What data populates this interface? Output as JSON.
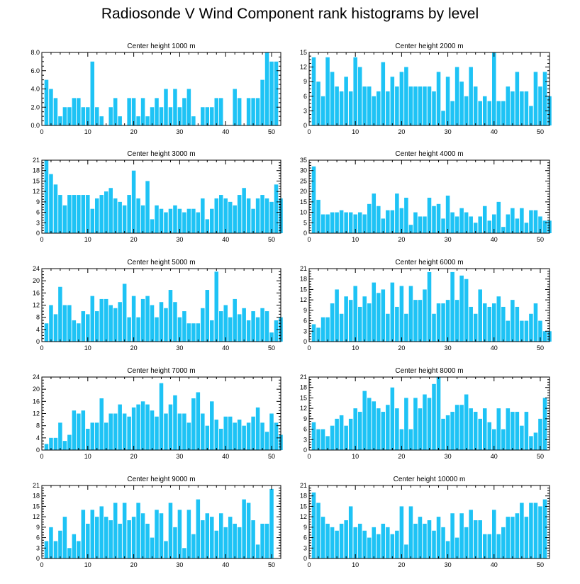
{
  "figure": {
    "title": "Radiosonde V Wind Component rank histograms by level",
    "bar_color": "#1EC3F5",
    "axis_color": "#000000"
  },
  "chart_data": [
    {
      "type": "bar",
      "title": "Center height 1000 m",
      "xlim": [
        0,
        52
      ],
      "ylim": [
        0,
        8
      ],
      "xticks": [
        0,
        10,
        20,
        30,
        40,
        50
      ],
      "yticks": [
        "0.0",
        "2.0",
        "4.0",
        "6.0",
        "8.0"
      ],
      "values": [
        5,
        4,
        3,
        1,
        2,
        2,
        3,
        3,
        2,
        2,
        7,
        2,
        1,
        0,
        2,
        3,
        1,
        0,
        3,
        3,
        1,
        3,
        1,
        2,
        3,
        2,
        4,
        2,
        4,
        2,
        3,
        4,
        1,
        0,
        2,
        2,
        2,
        3,
        3,
        0,
        0,
        4,
        3,
        0,
        3,
        3,
        3,
        5,
        8,
        7,
        7
      ]
    },
    {
      "type": "bar",
      "title": "Center height 2000 m",
      "xlim": [
        0,
        52
      ],
      "ylim": [
        0,
        15
      ],
      "xticks": [
        0,
        10,
        20,
        30,
        40,
        50
      ],
      "yticks": [
        "0",
        "3",
        "6",
        "9",
        "12",
        "15"
      ],
      "values": [
        14,
        9,
        6,
        14,
        11,
        8,
        7,
        10,
        7,
        14,
        12,
        8,
        8,
        6,
        7,
        13,
        7,
        10,
        8,
        11,
        12,
        8,
        8,
        8,
        8,
        8,
        7,
        11,
        3,
        10,
        5,
        12,
        9,
        6,
        12,
        8,
        5,
        6,
        5,
        15,
        5,
        5,
        8,
        7,
        11,
        7,
        7,
        4,
        11,
        8,
        11,
        6
      ]
    },
    {
      "type": "bar",
      "title": "Center height 3000 m",
      "xlim": [
        0,
        52
      ],
      "ylim": [
        0,
        21
      ],
      "xticks": [
        0,
        10,
        20,
        30,
        40,
        50
      ],
      "yticks": [
        "0",
        "3",
        "6",
        "9",
        "12",
        "15",
        "18",
        "21"
      ],
      "values": [
        21,
        17,
        14,
        11,
        8,
        11,
        11,
        11,
        11,
        11,
        7,
        10,
        11,
        12,
        13,
        10,
        9,
        8,
        11,
        18,
        10,
        8,
        15,
        4,
        8,
        7,
        6,
        7,
        8,
        7,
        6,
        7,
        7,
        6,
        10,
        4,
        7,
        10,
        11,
        10,
        9,
        8,
        11,
        13,
        10,
        7,
        10,
        11,
        10,
        9,
        14,
        10
      ]
    },
    {
      "type": "bar",
      "title": "Center height 4000 m",
      "xlim": [
        0,
        52
      ],
      "ylim": [
        0,
        35
      ],
      "xticks": [
        0,
        10,
        20,
        30,
        40,
        50
      ],
      "yticks": [
        "0",
        "5",
        "10",
        "15",
        "20",
        "25",
        "30",
        "35"
      ],
      "values": [
        32,
        16,
        9,
        9,
        10,
        10,
        11,
        10,
        10,
        9,
        10,
        9,
        14,
        19,
        13,
        7,
        11,
        11,
        19,
        12,
        17,
        4,
        10,
        8,
        8,
        17,
        13,
        14,
        7,
        18,
        10,
        8,
        12,
        10,
        8,
        5,
        8,
        13,
        6,
        9,
        15,
        3,
        9,
        12,
        7,
        12,
        5,
        11,
        11,
        8,
        6,
        6
      ]
    },
    {
      "type": "bar",
      "title": "Center height 5000 m",
      "xlim": [
        0,
        52
      ],
      "ylim": [
        0,
        24
      ],
      "xticks": [
        0,
        10,
        20,
        30,
        40,
        50
      ],
      "yticks": [
        "0",
        "4",
        "8",
        "12",
        "16",
        "20",
        "24"
      ],
      "values": [
        6,
        12,
        9,
        18,
        12,
        12,
        7,
        6,
        10,
        9,
        15,
        10,
        14,
        14,
        12,
        11,
        13,
        19,
        8,
        15,
        8,
        14,
        15,
        12,
        8,
        13,
        11,
        17,
        13,
        8,
        10,
        6,
        6,
        6,
        11,
        17,
        7,
        23,
        10,
        12,
        8,
        14,
        9,
        11,
        7,
        10,
        8,
        11,
        10,
        3,
        7,
        8
      ]
    },
    {
      "type": "bar",
      "title": "Center height 6000 m",
      "xlim": [
        0,
        52
      ],
      "ylim": [
        0,
        21
      ],
      "xticks": [
        0,
        10,
        20,
        30,
        40,
        50
      ],
      "yticks": [
        "0",
        "3",
        "6",
        "9",
        "12",
        "15",
        "18",
        "21"
      ],
      "values": [
        5,
        4,
        7,
        7,
        11,
        15,
        8,
        13,
        12,
        16,
        10,
        13,
        11,
        17,
        14,
        15,
        8,
        17,
        10,
        16,
        8,
        16,
        12,
        12,
        15,
        20,
        8,
        11,
        11,
        12,
        20,
        12,
        19,
        18,
        10,
        8,
        15,
        11,
        10,
        11,
        13,
        10,
        6,
        12,
        10,
        6,
        6,
        8,
        11,
        6,
        3,
        3
      ]
    },
    {
      "type": "bar",
      "title": "Center height 7000 m",
      "xlim": [
        0,
        52
      ],
      "ylim": [
        0,
        24
      ],
      "xticks": [
        0,
        10,
        20,
        30,
        40,
        50
      ],
      "yticks": [
        "0",
        "4",
        "8",
        "12",
        "16",
        "20",
        "24"
      ],
      "values": [
        2,
        4,
        4,
        9,
        3,
        5,
        13,
        12,
        13,
        7,
        9,
        9,
        17,
        9,
        12,
        12,
        15,
        12,
        11,
        14,
        15,
        16,
        15,
        13,
        11,
        22,
        12,
        15,
        18,
        12,
        12,
        9,
        17,
        19,
        12,
        8,
        16,
        10,
        7,
        11,
        11,
        9,
        10,
        8,
        9,
        11,
        14,
        9,
        6,
        12,
        9,
        5
      ]
    },
    {
      "type": "bar",
      "title": "Center height 8000 m",
      "xlim": [
        0,
        52
      ],
      "ylim": [
        0,
        21
      ],
      "xticks": [
        0,
        10,
        20,
        30,
        40,
        50
      ],
      "yticks": [
        "0",
        "3",
        "6",
        "9",
        "12",
        "15",
        "18",
        "21"
      ],
      "values": [
        8,
        6,
        6,
        4,
        7,
        9,
        10,
        7,
        9,
        12,
        11,
        17,
        15,
        14,
        12,
        11,
        13,
        18,
        12,
        6,
        15,
        6,
        15,
        12,
        16,
        15,
        19,
        21,
        9,
        10,
        11,
        13,
        13,
        16,
        12,
        11,
        9,
        12,
        8,
        6,
        12,
        6,
        12,
        11,
        11,
        7,
        11,
        4,
        5,
        9,
        15
      ]
    },
    {
      "type": "bar",
      "title": "Center height 9000 m",
      "xlim": [
        0,
        52
      ],
      "ylim": [
        0,
        21
      ],
      "xticks": [
        0,
        10,
        20,
        30,
        40,
        50
      ],
      "yticks": [
        "0",
        "3",
        "6",
        "9",
        "12",
        "15",
        "18",
        "21"
      ],
      "values": [
        5,
        9,
        5,
        8,
        12,
        3,
        7,
        5,
        14,
        10,
        14,
        12,
        15,
        12,
        11,
        16,
        10,
        16,
        11,
        12,
        16,
        13,
        10,
        6,
        14,
        13,
        5,
        16,
        9,
        14,
        3,
        14,
        7,
        17,
        11,
        13,
        12,
        8,
        13,
        9,
        12,
        10,
        9,
        17,
        16,
        11,
        4,
        10,
        10,
        20
      ]
    },
    {
      "type": "bar",
      "title": "Center height 10000 m",
      "xlim": [
        0,
        52
      ],
      "ylim": [
        0,
        21
      ],
      "xticks": [
        0,
        10,
        20,
        30,
        40,
        50
      ],
      "yticks": [
        "0",
        "3",
        "6",
        "9",
        "12",
        "15",
        "18",
        "21"
      ],
      "values": [
        19,
        16,
        12,
        10,
        9,
        8,
        10,
        11,
        15,
        9,
        10,
        8,
        6,
        9,
        7,
        10,
        9,
        7,
        8,
        15,
        4,
        15,
        10,
        12,
        10,
        11,
        8,
        12,
        9,
        5,
        13,
        6,
        13,
        9,
        14,
        11,
        11,
        7,
        7,
        14,
        7,
        9,
        12,
        12,
        13,
        16,
        12,
        16,
        16,
        15,
        17
      ]
    }
  ]
}
